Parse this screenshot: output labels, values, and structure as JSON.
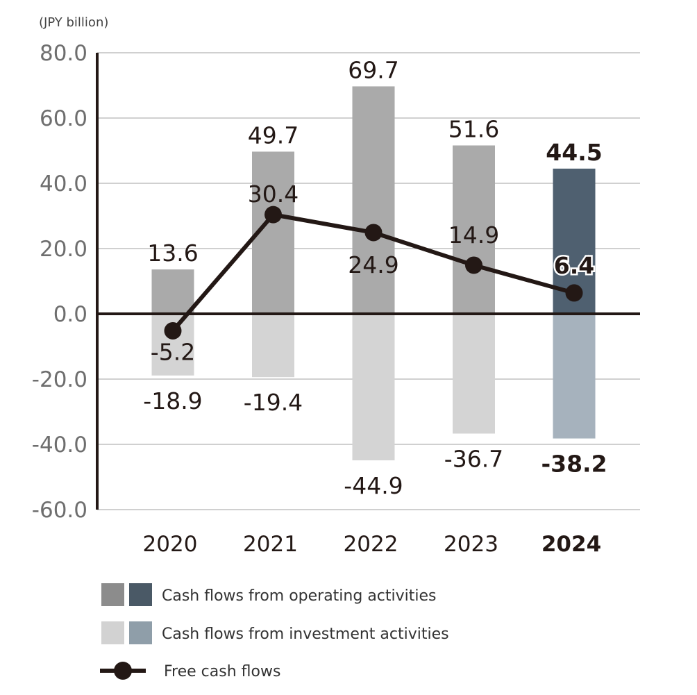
{
  "chart_data": {
    "type": "bar",
    "unit_label": "(JPY billion)",
    "categories": [
      "2020",
      "2021",
      "2022",
      "2023",
      "2024"
    ],
    "highlight_category": "2024",
    "ylim": [
      -60,
      80
    ],
    "yticks": [
      80,
      60,
      40,
      20,
      0,
      -20,
      -40,
      -60
    ],
    "ytick_labels": [
      "80.0",
      "60.0",
      "40.0",
      "20.0",
      "0.0",
      "-20.0",
      "-40.0",
      "-60.0"
    ],
    "grid": true,
    "legend_position": "bottom",
    "series": [
      {
        "name": "Cash flows from operating activities",
        "type": "bar",
        "values": [
          13.6,
          49.7,
          69.7,
          51.6,
          44.5
        ],
        "labels": [
          "13.6",
          "49.7",
          "69.7",
          "51.6",
          "44.5"
        ],
        "color": "#aaaaaa",
        "highlight_color": "#4f6070",
        "legend_colors": [
          "#8c8c8c",
          "#4a5966"
        ]
      },
      {
        "name": "Cash flows from investment activities",
        "type": "bar",
        "values": [
          -18.9,
          -19.4,
          -44.9,
          -36.7,
          -38.2
        ],
        "labels": [
          "-18.9",
          "-19.4",
          "-44.9",
          "-36.7",
          "-38.2"
        ],
        "color": "#d4d4d4",
        "highlight_color": "#a6b2bd",
        "legend_colors": [
          "#d2d2d2",
          "#8f9ea9"
        ]
      },
      {
        "name": "Free cash flows",
        "type": "line",
        "values": [
          -5.2,
          30.4,
          24.9,
          14.9,
          6.4
        ],
        "labels": [
          "-5.2",
          "30.4",
          "24.9",
          "14.9",
          "6.4"
        ],
        "color": "#231815"
      }
    ]
  }
}
